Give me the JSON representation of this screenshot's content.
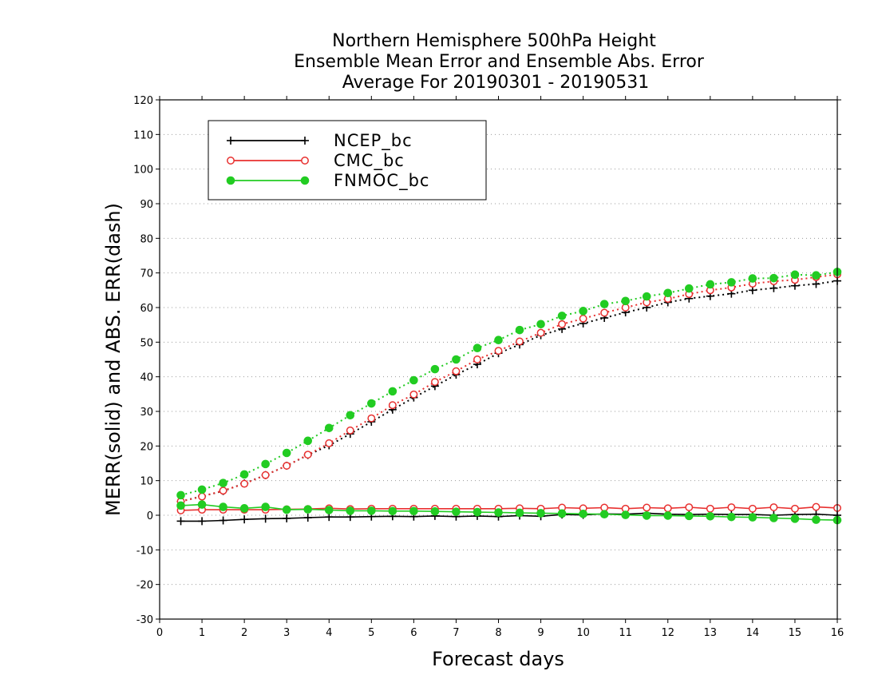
{
  "chart_data": {
    "type": "line",
    "title": [
      "Northern Hemisphere 500hPa Height",
      "Ensemble Mean Error and Ensemble Abs. Error",
      "Average For 20190301 - 20190531"
    ],
    "xlabel": "Forecast days",
    "ylabel": "MERR(solid) and ABS. ERR(dash)",
    "xlim": [
      0,
      16
    ],
    "ylim": [
      -30,
      120
    ],
    "xticks": [
      0,
      1,
      2,
      3,
      4,
      5,
      6,
      7,
      8,
      9,
      10,
      11,
      12,
      13,
      14,
      15,
      16
    ],
    "yticks": [
      -30,
      -20,
      -10,
      0,
      10,
      20,
      30,
      40,
      50,
      60,
      70,
      80,
      90,
      100,
      110,
      120
    ],
    "grid": "horizontal dotted",
    "legend_position": "top-left",
    "x": [
      0.5,
      1,
      1.5,
      2,
      2.5,
      3,
      3.5,
      4,
      4.5,
      5,
      5.5,
      6,
      6.5,
      7,
      7.5,
      8,
      8.5,
      9,
      9.5,
      10,
      10.5,
      11,
      11.5,
      12,
      12.5,
      13,
      13.5,
      14,
      14.5,
      15,
      15.5,
      16
    ],
    "series": [
      {
        "name": "NCEP_bc",
        "color": "#000000",
        "marker": "plus",
        "merr": [
          -1.7,
          -1.7,
          -1.5,
          -1.2,
          -1.0,
          -0.9,
          -0.7,
          -0.5,
          -0.5,
          -0.4,
          -0.3,
          -0.4,
          -0.2,
          -0.4,
          -0.2,
          -0.4,
          -0.1,
          -0.3,
          0.2,
          0.1,
          0.4,
          0.3,
          0.6,
          0.3,
          0.2,
          0.3,
          0.2,
          0.2,
          0.0,
          0.2,
          0.3,
          0.0
        ],
        "abs_err": [
          4.0,
          5.5,
          7.0,
          9.2,
          11.6,
          14.3,
          17.4,
          20.2,
          23.5,
          27.0,
          30.5,
          34.0,
          37.3,
          40.6,
          43.6,
          46.8,
          49.3,
          52.0,
          53.8,
          55.4,
          57.0,
          58.6,
          60.0,
          61.5,
          62.6,
          63.3,
          64.0,
          65.0,
          65.6,
          66.3,
          66.8,
          67.7
        ]
      },
      {
        "name": "CMC_bc",
        "color": "#e8302f",
        "marker": "open-circle",
        "merr": [
          1.4,
          1.6,
          1.6,
          1.6,
          1.6,
          1.7,
          1.8,
          2.0,
          1.8,
          1.9,
          1.9,
          1.9,
          1.9,
          1.9,
          1.9,
          1.9,
          2.0,
          1.9,
          2.2,
          2.0,
          2.2,
          1.9,
          2.2,
          2.0,
          2.3,
          1.9,
          2.3,
          1.9,
          2.3,
          1.9,
          2.4,
          2.1
        ],
        "abs_err": [
          4.0,
          5.4,
          7.1,
          9.1,
          11.6,
          14.3,
          17.5,
          20.8,
          24.5,
          28.0,
          31.8,
          34.9,
          38.5,
          41.6,
          45.0,
          47.5,
          50.2,
          52.7,
          55.2,
          56.8,
          58.5,
          60.0,
          61.5,
          62.5,
          63.9,
          65.0,
          65.8,
          66.9,
          67.6,
          68.0,
          68.8,
          69.6
        ]
      },
      {
        "name": "FNMOC_bc",
        "color": "#22cc22",
        "marker": "filled-circle",
        "merr": [
          2.8,
          3.1,
          2.4,
          2.0,
          2.4,
          1.6,
          1.7,
          1.5,
          1.3,
          1.3,
          1.2,
          1.2,
          1.1,
          1.0,
          0.9,
          0.8,
          0.7,
          0.6,
          0.5,
          0.4,
          0.3,
          0.1,
          -0.1,
          -0.1,
          -0.2,
          -0.3,
          -0.5,
          -0.6,
          -0.8,
          -1.0,
          -1.3,
          -1.4
        ],
        "abs_err": [
          5.8,
          7.4,
          9.3,
          11.8,
          14.8,
          18.0,
          21.5,
          25.2,
          28.9,
          32.3,
          35.8,
          39.0,
          42.2,
          45.0,
          48.3,
          50.6,
          53.5,
          55.2,
          57.6,
          59.0,
          61.0,
          61.9,
          63.2,
          64.2,
          65.5,
          66.7,
          67.3,
          68.4,
          68.5,
          69.5,
          69.3,
          70.3
        ]
      }
    ]
  }
}
